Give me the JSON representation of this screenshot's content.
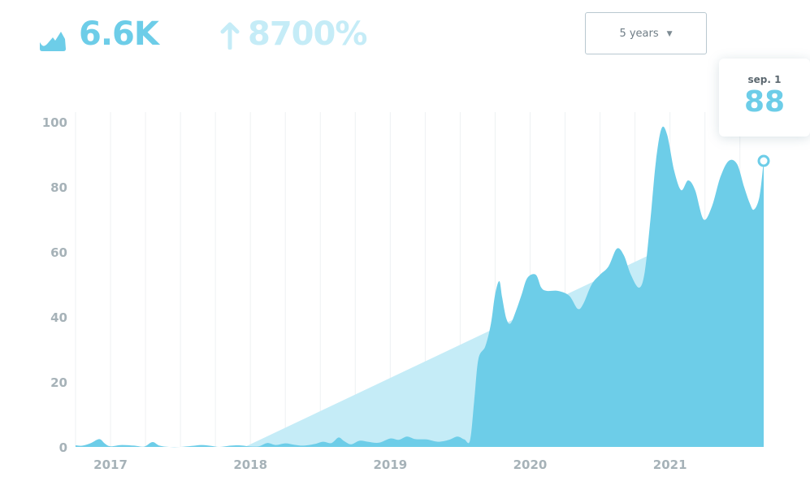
{
  "stats": {
    "total": "6.6K",
    "growth": "8700%",
    "icon": "trend-chart-icon",
    "arrow_icon": "arrow-up-icon"
  },
  "range_selector": {
    "selected": "5 years",
    "caret_icon": "chevron-down-icon"
  },
  "tooltip": {
    "date": "sep. 1",
    "value": "88"
  },
  "colors": {
    "accent": "#6dcde8",
    "trend_fill": "#c5ecf7",
    "axis_text": "#a6b2b8",
    "grid": "#eef1f3"
  },
  "chart_data": {
    "type": "area",
    "title": "",
    "xlabel": "",
    "ylabel": "",
    "ylim": [
      0,
      100
    ],
    "xlim": [
      2016.75,
      2021.67
    ],
    "y_ticks": [
      0,
      20,
      40,
      60,
      80,
      100
    ],
    "x_ticks": [
      {
        "label": "2017",
        "x": 2017.0
      },
      {
        "label": "2018",
        "x": 2018.0
      },
      {
        "label": "2019",
        "x": 2019.0
      },
      {
        "label": "2020",
        "x": 2020.0
      },
      {
        "label": "2021",
        "x": 2021.0
      }
    ],
    "grid": "vertical",
    "series": [
      {
        "role": "interest",
        "points": [
          [
            2016.75,
            0.5
          ],
          [
            2016.8,
            0.4
          ],
          [
            2016.86,
            1.2
          ],
          [
            2016.92,
            2.4
          ],
          [
            2016.96,
            1.0
          ],
          [
            2017.0,
            0.2
          ],
          [
            2017.08,
            0.6
          ],
          [
            2017.17,
            0.4
          ],
          [
            2017.24,
            0.1
          ],
          [
            2017.3,
            1.5
          ],
          [
            2017.35,
            0.4
          ],
          [
            2017.42,
            0.0
          ],
          [
            2017.5,
            0.0
          ],
          [
            2017.58,
            0.3
          ],
          [
            2017.65,
            0.6
          ],
          [
            2017.72,
            0.3
          ],
          [
            2017.78,
            0.0
          ],
          [
            2017.86,
            0.4
          ],
          [
            2017.92,
            0.5
          ],
          [
            2017.99,
            0.2
          ],
          [
            2018.06,
            0.2
          ],
          [
            2018.12,
            1.2
          ],
          [
            2018.18,
            0.6
          ],
          [
            2018.25,
            1.1
          ],
          [
            2018.31,
            0.7
          ],
          [
            2018.38,
            0.4
          ],
          [
            2018.46,
            0.9
          ],
          [
            2018.52,
            1.6
          ],
          [
            2018.58,
            1.2
          ],
          [
            2018.63,
            2.9
          ],
          [
            2018.67,
            1.8
          ],
          [
            2018.72,
            0.8
          ],
          [
            2018.78,
            1.9
          ],
          [
            2018.84,
            1.6
          ],
          [
            2018.92,
            1.3
          ],
          [
            2019.0,
            2.6
          ],
          [
            2019.06,
            2.2
          ],
          [
            2019.12,
            3.2
          ],
          [
            2019.18,
            2.4
          ],
          [
            2019.26,
            2.3
          ],
          [
            2019.34,
            1.6
          ],
          [
            2019.42,
            2.2
          ],
          [
            2019.48,
            3.2
          ],
          [
            2019.53,
            2.3
          ],
          [
            2019.57,
            2.0
          ],
          [
            2019.6,
            14.0
          ],
          [
            2019.63,
            27.0
          ],
          [
            2019.68,
            31.0
          ],
          [
            2019.72,
            38.0
          ],
          [
            2019.75,
            47.0
          ],
          [
            2019.78,
            51.0
          ],
          [
            2019.8,
            46.0
          ],
          [
            2019.83,
            39.5
          ],
          [
            2019.86,
            38.0
          ],
          [
            2019.9,
            42.0
          ],
          [
            2019.94,
            47.0
          ],
          [
            2019.98,
            52.0
          ],
          [
            2020.04,
            53.0
          ],
          [
            2020.08,
            49.0
          ],
          [
            2020.12,
            48.0
          ],
          [
            2020.2,
            48.0
          ],
          [
            2020.28,
            46.5
          ],
          [
            2020.34,
            42.5
          ],
          [
            2020.38,
            44.0
          ],
          [
            2020.44,
            50.0
          ],
          [
            2020.5,
            53.0
          ],
          [
            2020.56,
            55.5
          ],
          [
            2020.62,
            61.0
          ],
          [
            2020.67,
            59.0
          ],
          [
            2020.72,
            53.0
          ],
          [
            2020.78,
            49.0
          ],
          [
            2020.82,
            54.0
          ],
          [
            2020.86,
            70.0
          ],
          [
            2020.9,
            88.0
          ],
          [
            2020.94,
            98.0
          ],
          [
            2020.98,
            96.0
          ],
          [
            2021.03,
            85.0
          ],
          [
            2021.08,
            79.0
          ],
          [
            2021.13,
            82.0
          ],
          [
            2021.18,
            79.0
          ],
          [
            2021.24,
            70.0
          ],
          [
            2021.3,
            74.0
          ],
          [
            2021.36,
            83.0
          ],
          [
            2021.42,
            88.0
          ],
          [
            2021.48,
            87.0
          ],
          [
            2021.53,
            80.0
          ],
          [
            2021.57,
            75.0
          ],
          [
            2021.6,
            73.0
          ],
          [
            2021.64,
            77.0
          ],
          [
            2021.67,
            88.0
          ]
        ]
      },
      {
        "role": "trend",
        "points": [
          [
            2017.96,
            0
          ],
          [
            2020.9,
            60
          ]
        ]
      }
    ],
    "highlight": {
      "x": 2021.67,
      "y": 88
    }
  }
}
